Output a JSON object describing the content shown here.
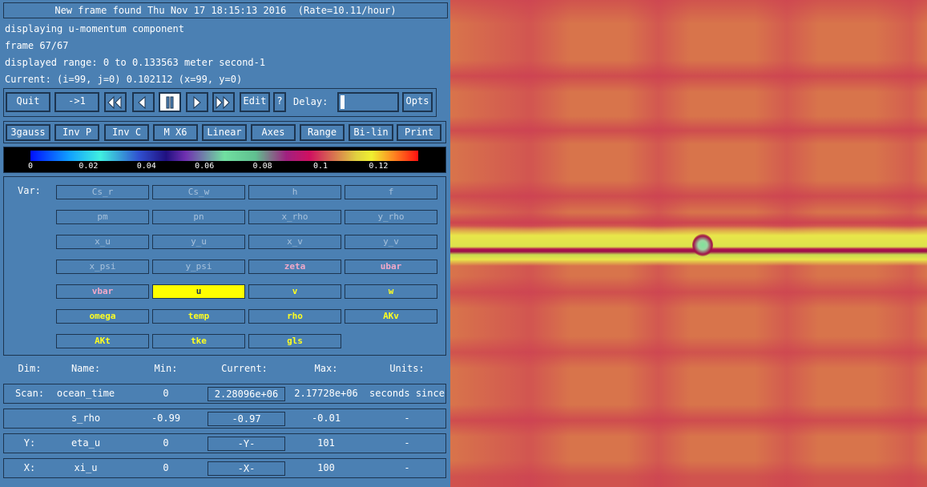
{
  "status": "New frame found Thu Nov 17 18:15:13 2016  (Rate=10.11/hour)",
  "info": [
    "displaying u-momentum component",
    "frame 67/67",
    "displayed range: 0 to 0.133563 meter second-1",
    "Current: (i=99, j=0) 0.102112 (x=99, y=0)"
  ],
  "controls": {
    "quit": "Quit",
    "first": "->1",
    "edit": "Edit",
    "help": "?",
    "delay": "Delay:",
    "opts": "Opts"
  },
  "options": [
    "3gauss",
    "Inv P",
    "Inv C",
    "M X6",
    "Linear",
    "Axes",
    "Range",
    "Bi-lin",
    "Print"
  ],
  "colorbar": {
    "labels": [
      "0",
      "0.02",
      "0.04",
      "0.06",
      "0.08",
      "0.1",
      "0.12"
    ]
  },
  "var_label": "Var:",
  "variables": [
    {
      "name": "Cs_r",
      "state": "inactive"
    },
    {
      "name": "Cs_w",
      "state": "inactive"
    },
    {
      "name": "h",
      "state": "inactive"
    },
    {
      "name": "f",
      "state": "inactive"
    },
    {
      "name": "pm",
      "state": "inactive"
    },
    {
      "name": "pn",
      "state": "inactive"
    },
    {
      "name": "x_rho",
      "state": "inactive"
    },
    {
      "name": "y_rho",
      "state": "inactive"
    },
    {
      "name": "x_u",
      "state": "inactive"
    },
    {
      "name": "y_u",
      "state": "inactive"
    },
    {
      "name": "x_v",
      "state": "inactive"
    },
    {
      "name": "y_v",
      "state": "inactive"
    },
    {
      "name": "x_psi",
      "state": "inactive"
    },
    {
      "name": "y_psi",
      "state": "inactive"
    },
    {
      "name": "zeta",
      "state": "dim"
    },
    {
      "name": "ubar",
      "state": "dim"
    },
    {
      "name": "vbar",
      "state": "dim"
    },
    {
      "name": "u",
      "state": "selected"
    },
    {
      "name": "v",
      "state": "active"
    },
    {
      "name": "w",
      "state": "active"
    },
    {
      "name": "omega",
      "state": "active"
    },
    {
      "name": "temp",
      "state": "active"
    },
    {
      "name": "rho",
      "state": "active"
    },
    {
      "name": "AKv",
      "state": "active"
    },
    {
      "name": "AKt",
      "state": "active"
    },
    {
      "name": "tke",
      "state": "active"
    },
    {
      "name": "gls",
      "state": "active"
    }
  ],
  "dims": {
    "header": [
      "Dim:",
      "Name:",
      "Min:",
      "Current:",
      "Max:",
      "Units:"
    ],
    "rows": [
      {
        "dim": "Scan:",
        "name": "ocean_time",
        "min": "0",
        "current": "2.28096e+06",
        "max": "2.17728e+06",
        "units": "seconds since"
      },
      {
        "name": "s_rho",
        "min": "-0.99",
        "current": "-0.97",
        "max": "-0.01",
        "units": "-"
      },
      {
        "dim": "Y:",
        "name": "eta_u",
        "min": "0",
        "current": "-Y-",
        "max": "101",
        "units": "-"
      },
      {
        "dim": "X:",
        "name": "xi_u",
        "min": "0",
        "current": "-X-",
        "max": "100",
        "units": "-"
      }
    ]
  }
}
